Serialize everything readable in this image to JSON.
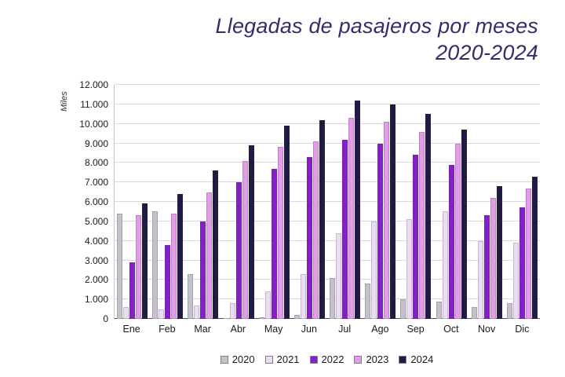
{
  "title": {
    "line1": "Llegadas de pasajeros por meses",
    "line2": "2020-2024"
  },
  "chart_data": {
    "type": "bar",
    "title": "Llegadas de pasajeros por meses 2020-2024",
    "xlabel": "",
    "ylabel": "Miles",
    "ylim": [
      0,
      12000
    ],
    "ytick_step": 1000,
    "yticks": [
      "0",
      "1.000",
      "2.000",
      "3.000",
      "4.000",
      "5.000",
      "6.000",
      "7.000",
      "8.000",
      "9.000",
      "10.000",
      "11.000",
      "12.000"
    ],
    "grid": true,
    "legend_position": "bottom",
    "categories": [
      "Ene",
      "Feb",
      "Mar",
      "Abr",
      "May",
      "Jun",
      "Jul",
      "Ago",
      "Sep",
      "Oct",
      "Nov",
      "Dic"
    ],
    "series": [
      {
        "name": "2020",
        "color": "#c5c1cb",
        "values": [
          5400,
          5500,
          2300,
          50,
          100,
          200,
          2100,
          1800,
          1000,
          900,
          600,
          800
        ]
      },
      {
        "name": "2021",
        "color": "#ecdcf5",
        "values": [
          600,
          500,
          700,
          800,
          1400,
          2300,
          4400,
          5000,
          5100,
          5500,
          4000,
          3900
        ]
      },
      {
        "name": "2022",
        "color": "#8520c8",
        "values": [
          2900,
          3800,
          5000,
          7000,
          7700,
          8300,
          9200,
          9000,
          8400,
          7900,
          5300,
          5700
        ]
      },
      {
        "name": "2023",
        "color": "#e29ce9",
        "values": [
          5300,
          5400,
          6500,
          8100,
          8800,
          9100,
          10300,
          10100,
          9600,
          9000,
          6200,
          6700
        ]
      },
      {
        "name": "2024",
        "color": "#211a44",
        "values": [
          5900,
          6400,
          7600,
          8900,
          9900,
          10200,
          11200,
          11000,
          10500,
          9700,
          6800,
          7300
        ]
      }
    ]
  }
}
